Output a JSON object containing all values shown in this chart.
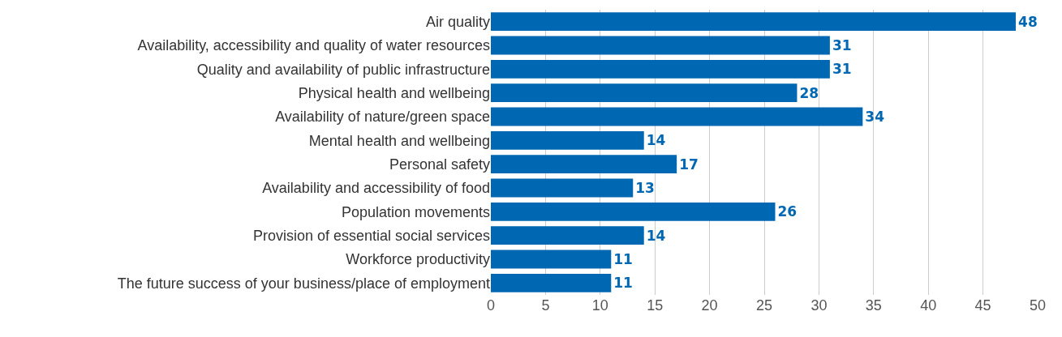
{
  "chart_data": {
    "type": "bar",
    "orientation": "horizontal",
    "categories": [
      "Air quality",
      "Availability, accessibility and quality of water resources",
      "Quality and availability of public infrastructure",
      "Physical health and wellbeing",
      "Availability of nature/green space",
      "Mental health and wellbeing",
      "Personal safety",
      "Availability and accessibility of food",
      "Population movements",
      "Provision of essential social services",
      "Workforce productivity",
      "The future success of your business/place of employment"
    ],
    "values": [
      48,
      31,
      31,
      28,
      34,
      14,
      17,
      13,
      26,
      14,
      11,
      11
    ],
    "color": "#0068b3",
    "xlim": [
      0,
      50
    ],
    "xticks": [
      0,
      5,
      10,
      15,
      20,
      25,
      30,
      35,
      40,
      45,
      50
    ],
    "grid": "x",
    "data_labels": true
  }
}
